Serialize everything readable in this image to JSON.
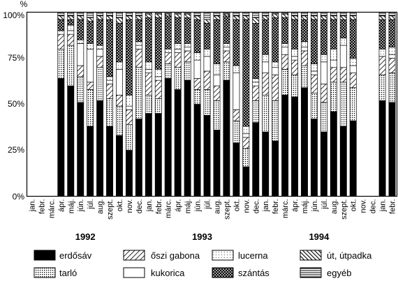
{
  "chart_data": {
    "type": "bar",
    "stacked": true,
    "percent_symbol": "%",
    "yticks": [
      "0%",
      "25%",
      "50%",
      "75%",
      "100%"
    ],
    "ylim": [
      0,
      100
    ],
    "grid": false,
    "legend_position": "bottom",
    "categories": [
      "jan.",
      "febr.",
      "márc.",
      "ápr.",
      "máj.",
      "jún.",
      "júl.",
      "aug.",
      "szept.",
      "okt.",
      "nov.",
      "dec.",
      "jan.",
      "febr.",
      "márc.",
      "ápr.",
      "máj.",
      "jún.",
      "júl.",
      "aug.",
      "szept.",
      "okt.",
      "nov.",
      "dec.",
      "jan.",
      "febr.",
      "márc.",
      "ápr.",
      "máj.",
      "jún.",
      "júl.",
      "aug.",
      "szept.",
      "okt.",
      "nov.",
      "dec.",
      "jan.",
      "febr."
    ],
    "years": [
      {
        "label": "1992",
        "start": 0,
        "end": 11
      },
      {
        "label": "1993",
        "start": 12,
        "end": 23
      },
      {
        "label": "1994",
        "start": 24,
        "end": 35
      }
    ],
    "series": [
      {
        "name": "erdősáv",
        "pattern": "solid",
        "values": [
          null,
          null,
          null,
          64,
          60,
          51,
          38,
          52,
          38,
          33,
          25,
          42,
          45,
          45,
          64,
          58,
          63,
          50,
          44,
          36,
          63,
          29,
          16,
          40,
          35,
          30,
          55,
          54,
          59,
          42,
          35,
          46,
          38,
          41,
          null,
          null,
          52,
          51
        ]
      },
      {
        "name": "tarló",
        "pattern": "dots",
        "values": [
          null,
          null,
          null,
          16,
          22,
          14,
          20,
          18,
          15,
          16,
          14,
          28,
          10,
          8,
          8,
          12,
          10,
          8,
          14,
          16,
          10,
          12,
          10,
          12,
          20,
          22,
          14,
          12,
          12,
          14,
          16,
          16,
          24,
          18,
          null,
          null,
          14,
          16
        ]
      },
      {
        "name": "őszi gabona",
        "pattern": "diag",
        "values": [
          null,
          null,
          null,
          8,
          6,
          6,
          4,
          6,
          8,
          6,
          8,
          10,
          12,
          10,
          6,
          8,
          6,
          6,
          10,
          8,
          6,
          6,
          6,
          8,
          12,
          14,
          8,
          8,
          8,
          10,
          10,
          8,
          8,
          8,
          null,
          null,
          10,
          8
        ]
      },
      {
        "name": "kukorica",
        "pattern": "blank",
        "values": [
          null,
          null,
          null,
          0,
          2,
          12,
          18,
          4,
          2,
          14,
          2,
          2,
          2,
          2,
          0,
          2,
          2,
          10,
          8,
          6,
          2,
          20,
          2,
          2,
          6,
          4,
          4,
          2,
          2,
          2,
          12,
          4,
          12,
          4,
          null,
          null,
          0,
          2
        ]
      },
      {
        "name": "lucerna",
        "pattern": "lightdots",
        "values": [
          null,
          null,
          null,
          2,
          3,
          2,
          3,
          2,
          2,
          4,
          6,
          2,
          4,
          4,
          2,
          3,
          2,
          4,
          4,
          6,
          2,
          4,
          4,
          2,
          4,
          3,
          2,
          4,
          3,
          4,
          4,
          6,
          4,
          4,
          null,
          null,
          4,
          4
        ]
      },
      {
        "name": "szántás",
        "pattern": "cross",
        "values": [
          null,
          null,
          null,
          6,
          3,
          11,
          12,
          14,
          31,
          21,
          41,
          12,
          24,
          28,
          18,
          14,
          14,
          18,
          14,
          24,
          15,
          25,
          58,
          30,
          19,
          24,
          14,
          16,
          12,
          24,
          19,
          16,
          10,
          21,
          null,
          null,
          16,
          15
        ]
      },
      {
        "name": "út, útpadka",
        "pattern": "antidiag",
        "values": [
          null,
          null,
          null,
          2,
          2,
          2,
          2,
          2,
          2,
          3,
          2,
          2,
          2,
          2,
          1,
          2,
          2,
          2,
          2,
          2,
          1,
          2,
          2,
          3,
          2,
          2,
          2,
          2,
          2,
          2,
          2,
          2,
          2,
          2,
          null,
          null,
          2,
          2
        ]
      },
      {
        "name": "egyéb",
        "pattern": "hlines",
        "values": [
          null,
          null,
          null,
          2,
          2,
          2,
          3,
          2,
          2,
          3,
          2,
          2,
          1,
          1,
          1,
          1,
          1,
          2,
          4,
          2,
          1,
          2,
          2,
          3,
          2,
          1,
          1,
          2,
          2,
          2,
          2,
          2,
          2,
          2,
          null,
          null,
          2,
          2
        ]
      }
    ],
    "legend": [
      {
        "label": "erdősáv",
        "pattern": "solid"
      },
      {
        "label": "őszi gabona",
        "pattern": "diag"
      },
      {
        "label": "lucerna",
        "pattern": "lightdots"
      },
      {
        "label": "út, útpadka",
        "pattern": "antidiag"
      },
      {
        "label": "tarló",
        "pattern": "dots"
      },
      {
        "label": "kukorica",
        "pattern": "blank"
      },
      {
        "label": "szántás",
        "pattern": "cross"
      },
      {
        "label": "egyéb",
        "pattern": "hlines"
      }
    ]
  }
}
